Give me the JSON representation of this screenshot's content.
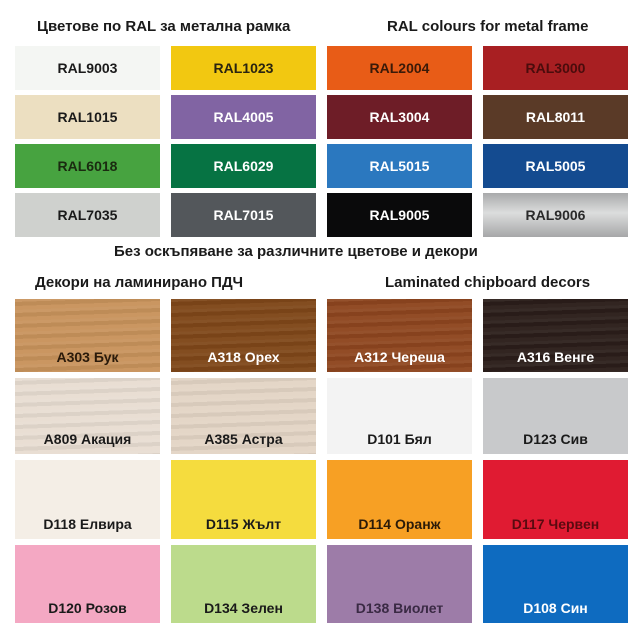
{
  "headings": {
    "ral_bg": "Цветове по RAL за метална рамка",
    "ral_en": "RAL colours for metal frame",
    "note": "Без оскъпяване за различните цветове и декори",
    "lam_bg": "Декори на ламинирано ПДЧ",
    "lam_en": "Laminated chipboard decors"
  },
  "ral_colors": [
    {
      "label": "RAL9003",
      "color": "#f4f6f3",
      "text": "#1a1a1a"
    },
    {
      "label": "RAL1023",
      "color": "#f2c811",
      "text": "#2a2410"
    },
    {
      "label": "RAL2004",
      "color": "#e85c17",
      "text": "#3a1a08"
    },
    {
      "label": "RAL3000",
      "color": "#a81f22",
      "text": "#4a0c0c"
    },
    {
      "label": "RAL1015",
      "color": "#ecdfc1",
      "text": "#1a1a1a"
    },
    {
      "label": "RAL4005",
      "color": "#8164a3",
      "text": "#ffffff"
    },
    {
      "label": "RAL3004",
      "color": "#6e1d27",
      "text": "#ffffff"
    },
    {
      "label": "RAL8011",
      "color": "#5a3a27",
      "text": "#ffffff"
    },
    {
      "label": "RAL6018",
      "color": "#47a340",
      "text": "#1a2a10"
    },
    {
      "label": "RAL6029",
      "color": "#067343",
      "text": "#ffffff"
    },
    {
      "label": "RAL5015",
      "color": "#2b78bf",
      "text": "#ffffff"
    },
    {
      "label": "RAL5005",
      "color": "#144b90",
      "text": "#ffffff"
    },
    {
      "label": "RAL7035",
      "color": "#cfd1ce",
      "text": "#1a1a1a"
    },
    {
      "label": "RAL7015",
      "color": "#53575b",
      "text": "#ffffff"
    },
    {
      "label": "RAL9005",
      "color": "#0a0a0b",
      "text": "#ffffff"
    },
    {
      "label": "RAL9006",
      "color": "#b4b5b6",
      "text": "#2a2a2a"
    }
  ],
  "laminate_decors": [
    {
      "label": "A303 Бук",
      "color": "#c8935c",
      "text": "#2a1a0a",
      "wood": true
    },
    {
      "label": "A318 Орех",
      "color": "#7f4719",
      "text": "#ffffff",
      "wood": true
    },
    {
      "label": "A312 Череша",
      "color": "#8e461f",
      "text": "#ffffff",
      "wood": true
    },
    {
      "label": "A316 Венге",
      "color": "#2b1e1a",
      "text": "#ffffff",
      "wood": true
    },
    {
      "label": "A809 Акация",
      "color": "#e8ddd2",
      "text": "#1a1a1a",
      "wood": true
    },
    {
      "label": "A385 Астра",
      "color": "#e3d5c5",
      "text": "#1a1a1a",
      "wood": true
    },
    {
      "label": "D101 Бял",
      "color": "#f3f3f3",
      "text": "#1a1a1a",
      "wood": false
    },
    {
      "label": "D123 Сив",
      "color": "#c8c9cb",
      "text": "#1a1a1a",
      "wood": false
    },
    {
      "label": "D118 Елвира",
      "color": "#f4eee6",
      "text": "#1a1a1a",
      "wood": false
    },
    {
      "label": "D115 Жълт",
      "color": "#f5dc3e",
      "text": "#1a1a1a",
      "wood": false
    },
    {
      "label": "D114 Оранж",
      "color": "#f7a024",
      "text": "#2a1a08",
      "wood": false
    },
    {
      "label": "D117 Червен",
      "color": "#e01b32",
      "text": "#5a0a10",
      "wood": false
    },
    {
      "label": "D120 Розов",
      "color": "#f4a8c3",
      "text": "#1a1a1a",
      "wood": false
    },
    {
      "label": "D134 Зелен",
      "color": "#bcdb8c",
      "text": "#1a1a1a",
      "wood": false
    },
    {
      "label": "D138 Виолет",
      "color": "#9d7ca8",
      "text": "#3a2a44",
      "wood": false
    },
    {
      "label": "D108 Син",
      "color": "#0e6bc0",
      "text": "#ffffff",
      "wood": false
    }
  ]
}
